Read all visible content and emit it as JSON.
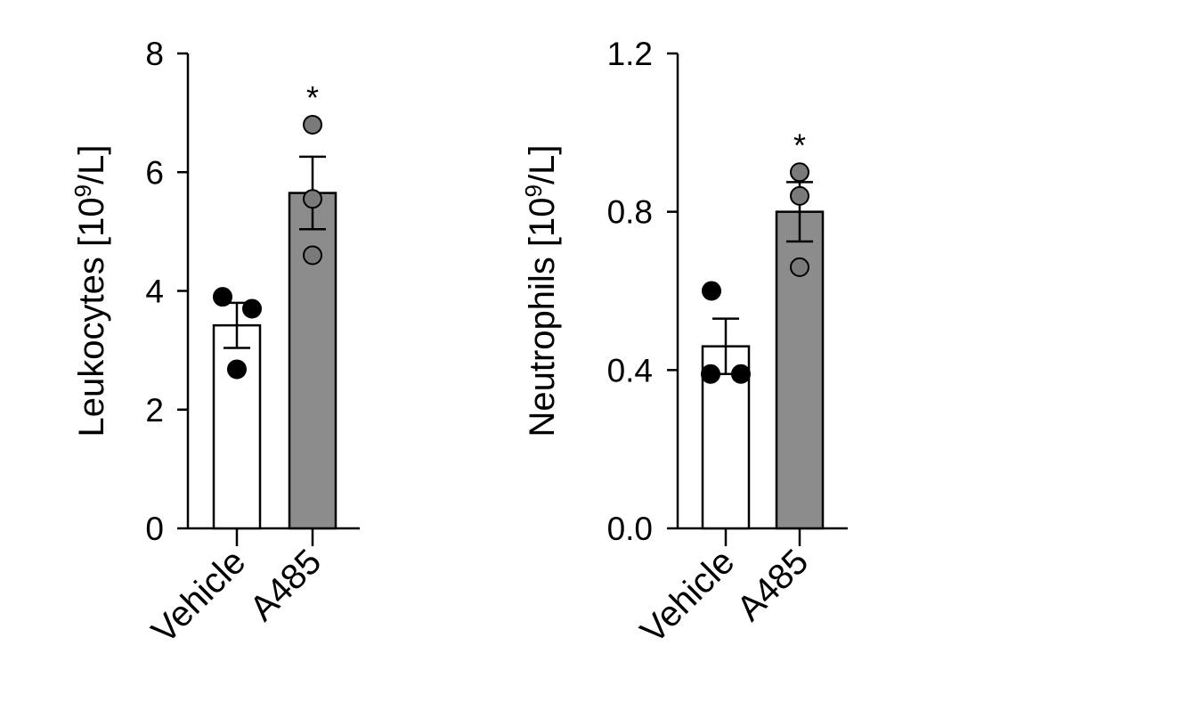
{
  "colors": {
    "axis": "#000000",
    "vehicle_fill": "#ffffff",
    "a485_fill": "#8c8c8c",
    "a485_point": "#7a7a7a",
    "vehicle_point": "#000000"
  },
  "chart_data": [
    {
      "type": "bar",
      "ylabel_prefix": "Leukocytes [10",
      "ylabel_sup": "9",
      "ylabel_suffix": "/L]",
      "ylim": [
        0,
        8
      ],
      "yticks": [
        0,
        2,
        4,
        6,
        8
      ],
      "ytick_labels": [
        "0",
        "2",
        "4",
        "6",
        "8"
      ],
      "categories": [
        "Vehicle",
        "A485"
      ],
      "values": [
        3.42,
        5.65
      ],
      "sem": [
        0.38,
        0.61
      ],
      "points": [
        [
          3.9,
          3.7,
          2.68
        ],
        [
          6.8,
          5.55,
          4.6
        ]
      ],
      "significance": [
        "",
        "*"
      ],
      "grid": false
    },
    {
      "type": "bar",
      "ylabel_prefix": "Neutrophils [10",
      "ylabel_sup": "9",
      "ylabel_suffix": "/L]",
      "ylim": [
        0,
        1.2
      ],
      "yticks": [
        0,
        0.4,
        0.8,
        1.2
      ],
      "ytick_labels": [
        "0.0",
        "0.4",
        "0.8",
        "1.2"
      ],
      "categories": [
        "Vehicle",
        "A485"
      ],
      "values": [
        0.46,
        0.8
      ],
      "sem": [
        0.07,
        0.075
      ],
      "points": [
        [
          0.6,
          0.39,
          0.39
        ],
        [
          0.9,
          0.84,
          0.66
        ]
      ],
      "significance": [
        "",
        "*"
      ],
      "grid": false
    }
  ]
}
